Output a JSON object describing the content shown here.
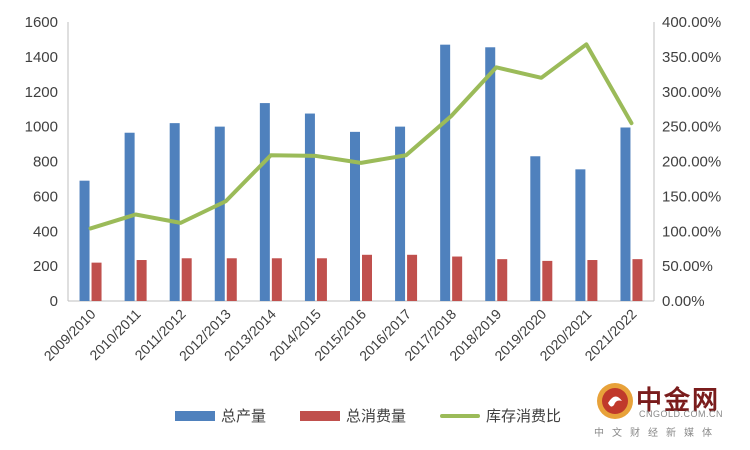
{
  "chart_data": {
    "type": "bar",
    "categories": [
      "2009/2010",
      "2010/2011",
      "2011/2012",
      "2012/2013",
      "2013/2014",
      "2014/2015",
      "2015/2016",
      "2016/2017",
      "2017/2018",
      "2018/2019",
      "2019/2020",
      "2020/2021",
      "2021/2022"
    ],
    "series": [
      {
        "name": "总产量",
        "type": "bar",
        "axis": "left",
        "color": "#4F81BD",
        "values": [
          690,
          965,
          1020,
          1000,
          1135,
          1075,
          970,
          1000,
          1470,
          1455,
          830,
          755,
          995
        ]
      },
      {
        "name": "总消费量",
        "type": "bar",
        "axis": "left",
        "color": "#C0504D",
        "values": [
          220,
          235,
          245,
          245,
          245,
          245,
          265,
          265,
          255,
          240,
          230,
          235,
          240
        ]
      },
      {
        "name": "库存消费比",
        "type": "line",
        "axis": "right",
        "color": "#9BBB59",
        "values": [
          104,
          124,
          112,
          143,
          209,
          208,
          198,
          209,
          265,
          335,
          320,
          368,
          255
        ]
      }
    ],
    "y_left": {
      "min": 0,
      "max": 1600,
      "step": 200,
      "tick_labels": [
        "0",
        "200",
        "400",
        "600",
        "800",
        "1000",
        "1200",
        "1400",
        "1600"
      ]
    },
    "y_right": {
      "min": 0,
      "max": 400,
      "step": 50,
      "unit": "%",
      "tick_labels": [
        "0.00%",
        "50.00%",
        "100.00%",
        "150.00%",
        "200.00%",
        "250.00%",
        "300.00%",
        "350.00%",
        "400.00%"
      ]
    },
    "grid": false,
    "legend_position": "bottom"
  },
  "legend": {
    "production_label": "总产量",
    "consumption_label": "总消费量",
    "ratio_label": "库存消费比"
  },
  "watermark": {
    "name": "中金网",
    "url": "CNGOLD.COM.CN",
    "tagline": "中文财经新媒体"
  }
}
